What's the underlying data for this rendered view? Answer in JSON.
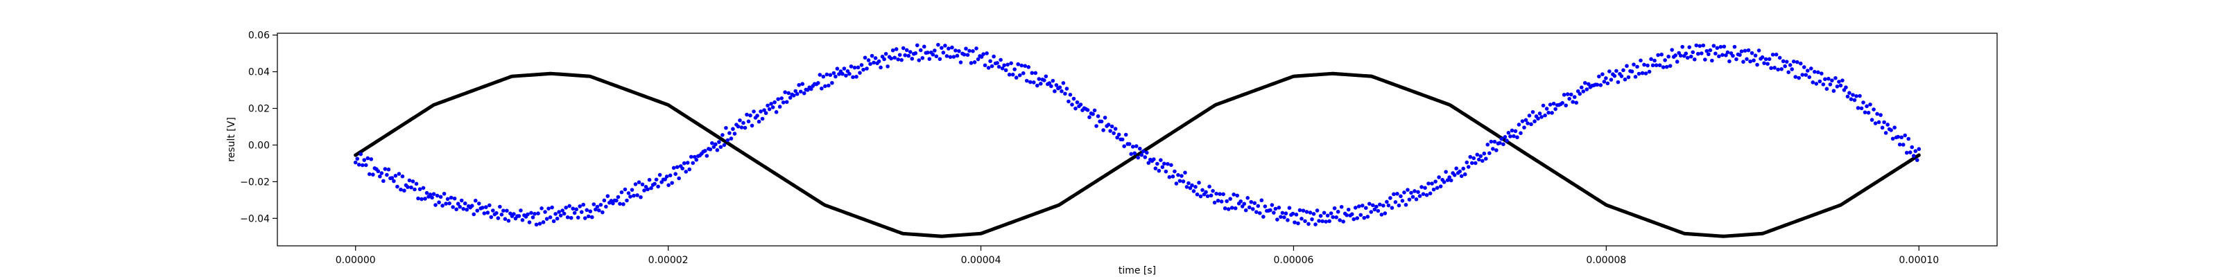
{
  "chart_data": {
    "type": "scatter",
    "title": "",
    "xlabel": "time [s]",
    "ylabel": "result [V]",
    "xlim": [
      -5e-06,
      0.000105
    ],
    "ylim": [
      -0.055,
      0.061
    ],
    "grid": false,
    "x_ticks": [
      0.0,
      2e-05,
      4e-05,
      6e-05,
      8e-05,
      0.0001
    ],
    "x_tick_labels": [
      "0.00000",
      "0.00002",
      "0.00004",
      "0.00006",
      "0.00008",
      "0.00010"
    ],
    "y_ticks": [
      -0.04,
      -0.02,
      0.0,
      0.02,
      0.04,
      0.06
    ],
    "y_tick_labels": [
      "−0.04",
      "−0.02",
      "0.00",
      "0.02",
      "0.04",
      "0.06"
    ],
    "series": [
      {
        "color": "#000000",
        "marker": "dot",
        "x": [
          0.0,
          5e-06,
          1e-05,
          1.25e-05,
          1.5e-05,
          2e-05,
          2.5e-05,
          3e-05,
          3.5e-05,
          3.75e-05,
          4e-05,
          4.5e-05,
          5e-05,
          5.5e-05,
          6e-05,
          6.25e-05,
          6.5e-05,
          7e-05,
          7.5e-05,
          8e-05,
          8.5e-05,
          8.75e-05,
          9e-05,
          9.5e-05,
          0.0001
        ],
        "y": [
          -0.0055,
          0.0219,
          0.0375,
          0.039,
          0.0375,
          0.0219,
          -0.0055,
          -0.0327,
          -0.0483,
          -0.0498,
          -0.0483,
          -0.0327,
          -0.0055,
          0.0219,
          0.0375,
          0.039,
          0.0375,
          0.0219,
          -0.0055,
          -0.0327,
          -0.0483,
          -0.0498,
          -0.0483,
          -0.0327,
          -0.0055
        ]
      },
      {
        "color": "#0000ff",
        "marker": "dot",
        "x": [
          0.0,
          5e-06,
          1e-05,
          1.2e-05,
          1.5e-05,
          2e-05,
          2.5e-05,
          3e-05,
          3.5e-05,
          3.7e-05,
          4e-05,
          4.5e-05,
          5e-05,
          5.5e-05,
          6e-05,
          6.2e-05,
          6.5e-05,
          7e-05,
          7.5e-05,
          8e-05,
          8.5e-05,
          8.7e-05,
          9e-05,
          9.5e-05,
          0.0001
        ],
        "y": [
          -0.008,
          -0.029,
          -0.0385,
          -0.039,
          -0.036,
          -0.018,
          0.013,
          0.036,
          0.05,
          0.0505,
          0.048,
          0.032,
          -0.004,
          -0.029,
          -0.0385,
          -0.039,
          -0.036,
          -0.018,
          0.013,
          0.036,
          0.05,
          0.0505,
          0.048,
          0.032,
          -0.006
        ]
      }
    ]
  }
}
